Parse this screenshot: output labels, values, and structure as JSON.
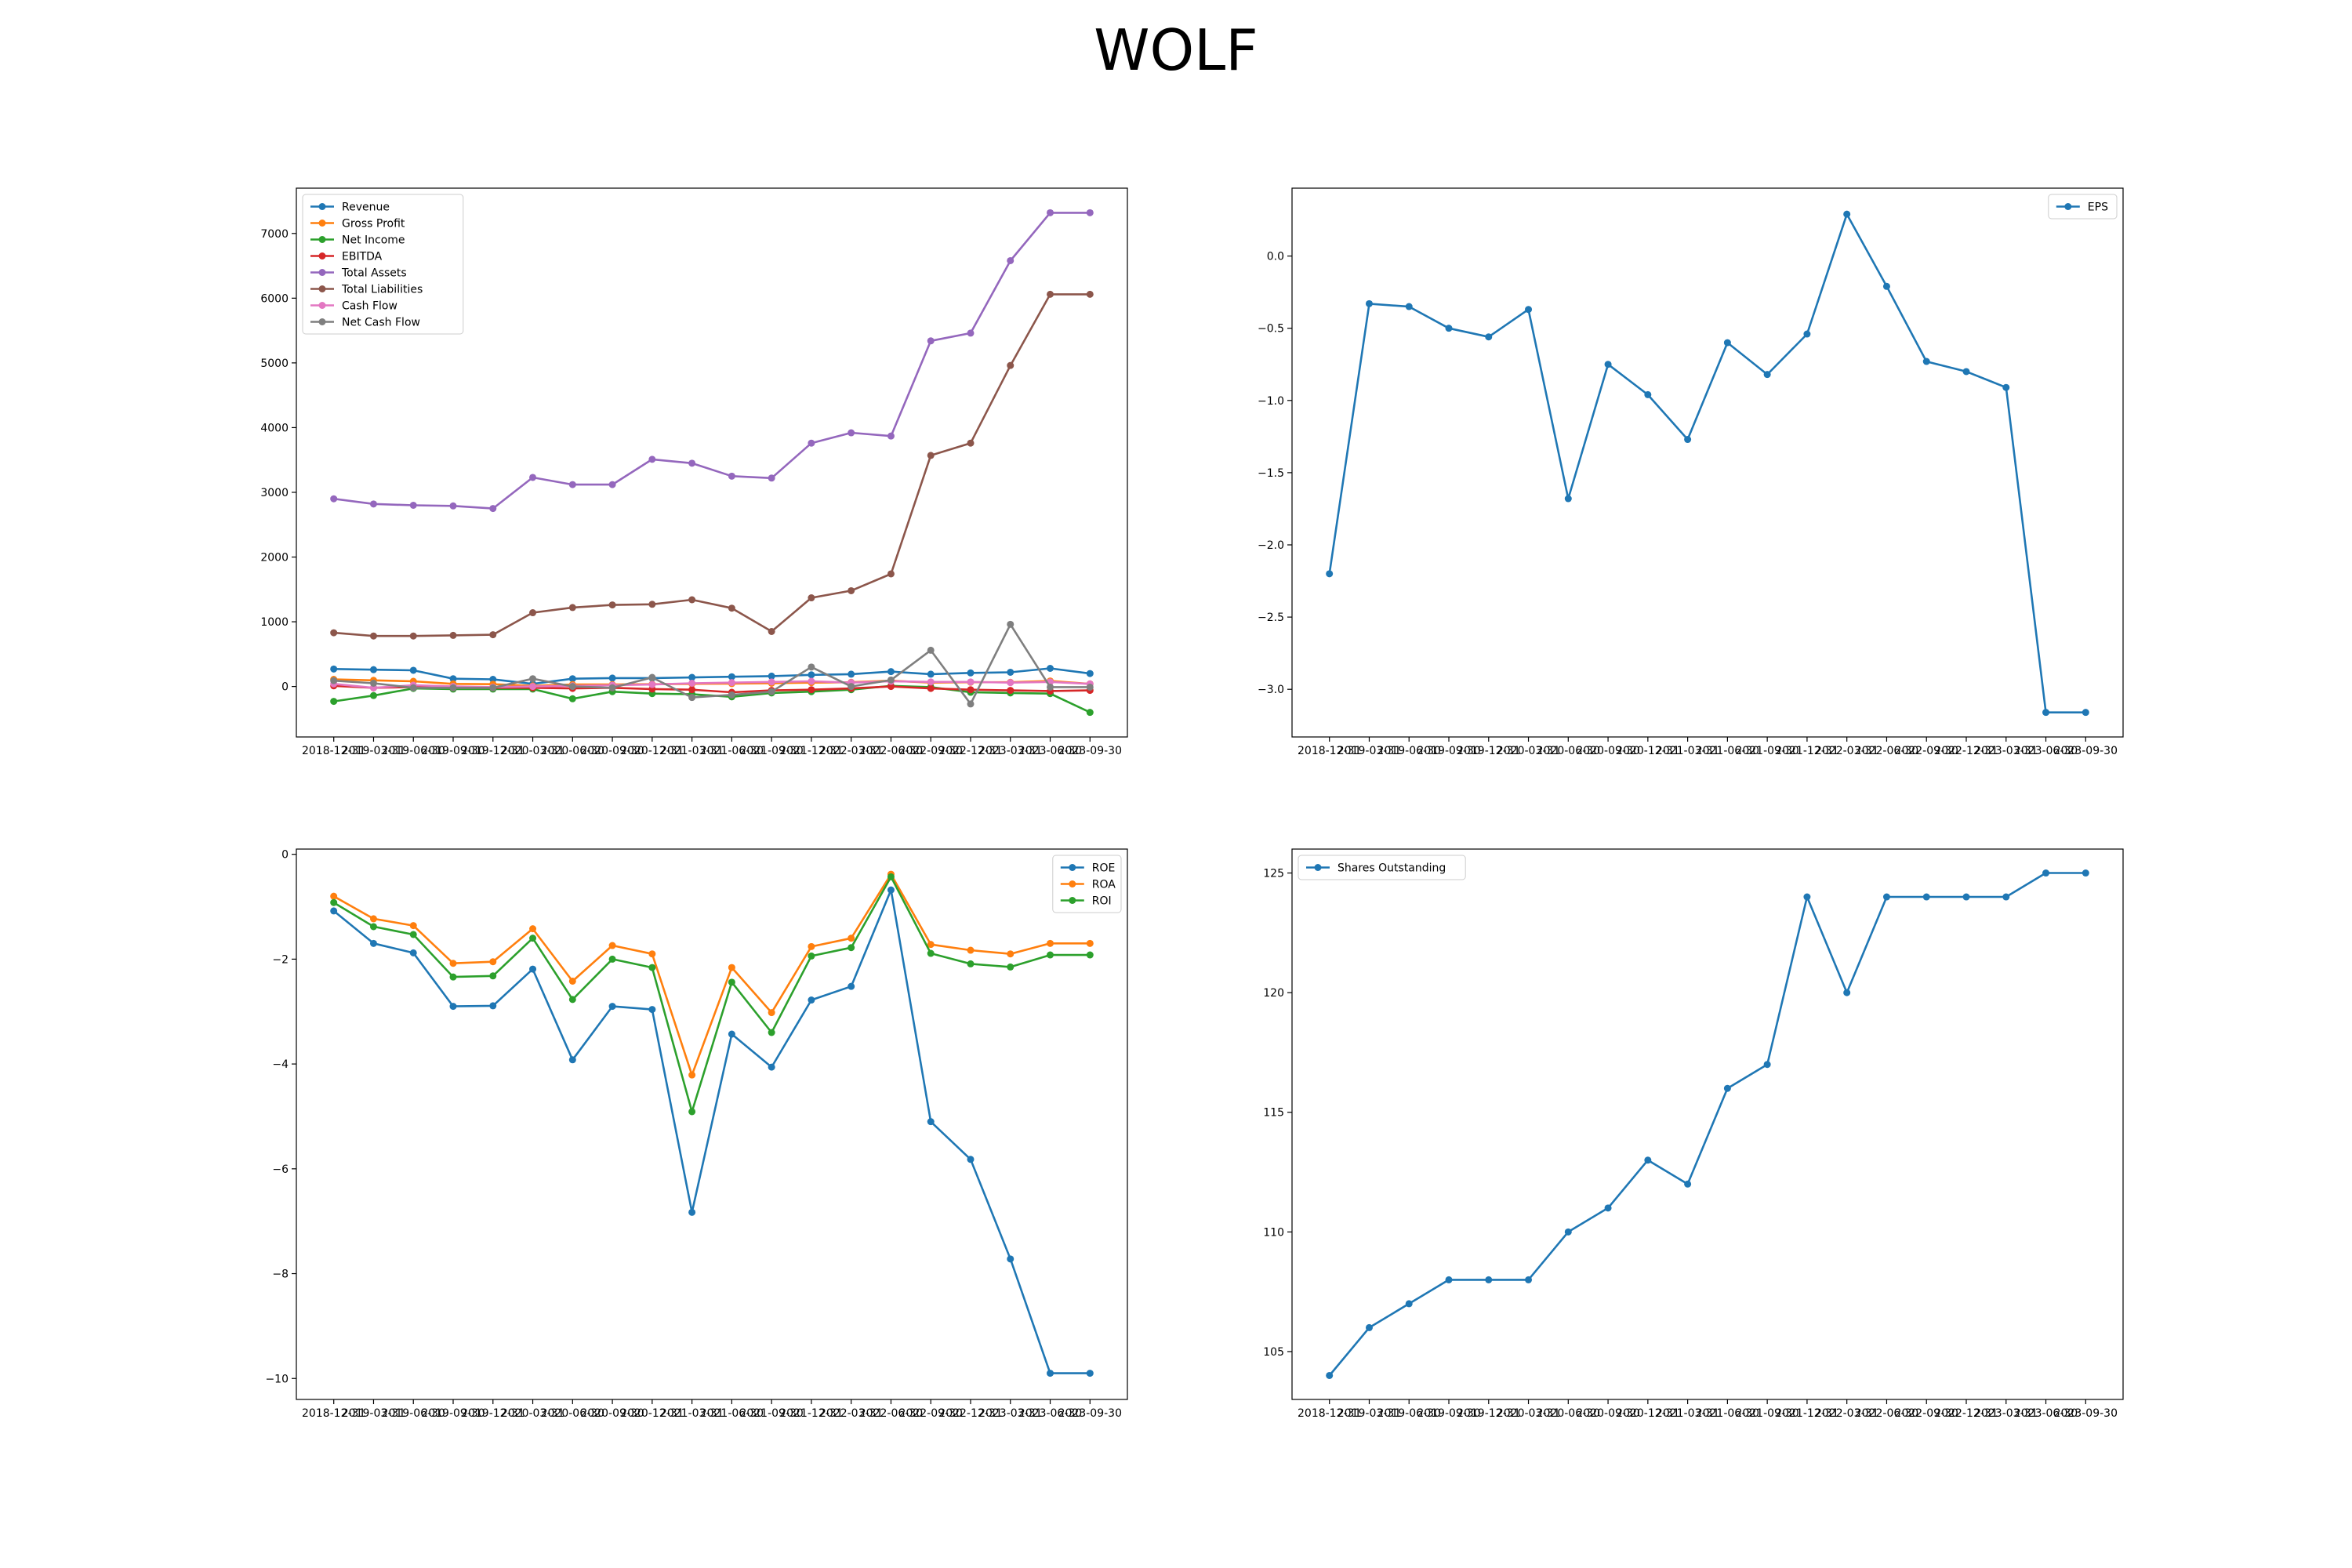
{
  "title": "WOLF",
  "dates": [
    "2018-12-31",
    "2019-03-31",
    "2019-06-30",
    "2019-09-30",
    "2019-12-31",
    "2020-03-31",
    "2020-06-30",
    "2020-09-30",
    "2020-12-31",
    "2021-03-31",
    "2021-06-30",
    "2021-09-30",
    "2021-12-31",
    "2022-03-31",
    "2022-06-30",
    "2022-09-30",
    "2022-12-31",
    "2023-03-31",
    "2023-06-30",
    "2023-09-30"
  ],
  "colors": [
    "#1f77b4",
    "#ff7f0e",
    "#2ca02c",
    "#d62728",
    "#9467bd",
    "#8c564b",
    "#e377c2",
    "#7f7f7f"
  ],
  "chart_data": [
    {
      "type": "line",
      "ylim": [
        -780,
        7700
      ],
      "yticks": [
        0,
        1000,
        2000,
        3000,
        4000,
        5000,
        6000,
        7000
      ],
      "legend_loc": "upper-left",
      "series": [
        {
          "name": "Revenue",
          "values": [
            270,
            260,
            250,
            120,
            110,
            40,
            120,
            130,
            130,
            140,
            150,
            160,
            180,
            190,
            230,
            190,
            210,
            220,
            280,
            200
          ]
        },
        {
          "name": "Gross Profit",
          "values": [
            110,
            95,
            80,
            40,
            35,
            10,
            30,
            30,
            35,
            40,
            45,
            50,
            60,
            65,
            90,
            60,
            65,
            65,
            85,
            40
          ]
        },
        {
          "name": "Net Income",
          "values": [
            -230,
            -140,
            -30,
            -40,
            -40,
            -40,
            -190,
            -80,
            -110,
            -120,
            -160,
            -100,
            -80,
            -50,
            10,
            -10,
            -90,
            -100,
            -110,
            -400
          ]
        },
        {
          "name": "EBITDA",
          "values": [
            10,
            -20,
            -10,
            -20,
            -20,
            -20,
            -30,
            -20,
            -40,
            -50,
            -90,
            -60,
            -50,
            -30,
            0,
            -30,
            -50,
            -60,
            -70,
            -60
          ]
        },
        {
          "name": "Total Assets",
          "values": [
            2900,
            2820,
            2800,
            2790,
            2750,
            3230,
            3120,
            3120,
            3510,
            3450,
            3250,
            3220,
            3760,
            3920,
            3870,
            5340,
            5460,
            6580,
            7320,
            7320
          ]
        },
        {
          "name": "Total Liabilities",
          "values": [
            830,
            780,
            780,
            790,
            800,
            1140,
            1220,
            1260,
            1270,
            1340,
            1210,
            850,
            1370,
            1480,
            1740,
            3570,
            3760,
            4960,
            6060,
            6060
          ]
        },
        {
          "name": "Cash Flow",
          "values": [
            40,
            -20,
            20,
            0,
            -10,
            0,
            10,
            20,
            30,
            50,
            60,
            70,
            80,
            60,
            80,
            70,
            70,
            60,
            70,
            40
          ]
        },
        {
          "name": "Net Cash Flow",
          "values": [
            90,
            50,
            -20,
            -20,
            -20,
            120,
            0,
            -20,
            140,
            -170,
            -130,
            -80,
            300,
            0,
            100,
            560,
            -270,
            960,
            -10,
            -10
          ]
        }
      ]
    },
    {
      "type": "line",
      "ylim": [
        -3.33,
        0.47
      ],
      "yticks": [
        0.0,
        -0.5,
        -1.0,
        -1.5,
        -2.0,
        -2.5,
        -3.0
      ],
      "ytick_labels": [
        "0.0",
        "−0.5",
        "−1.0",
        "−1.5",
        "−2.0",
        "−2.5",
        "−3.0"
      ],
      "legend_loc": "upper-right",
      "series": [
        {
          "name": "EPS",
          "values": [
            -2.2,
            -0.33,
            -0.35,
            -0.5,
            -0.56,
            -0.37,
            -1.68,
            -0.75,
            -0.96,
            -1.27,
            -0.6,
            -0.82,
            -0.54,
            0.29,
            -0.21,
            -0.73,
            -0.8,
            -0.91,
            -3.16,
            -3.16
          ]
        }
      ]
    },
    {
      "type": "line",
      "ylim": [
        -10.4,
        0.1
      ],
      "yticks": [
        0,
        -2,
        -4,
        -6,
        -8,
        -10
      ],
      "ytick_labels": [
        "0",
        "−2",
        "−4",
        "−6",
        "−8",
        "−10"
      ],
      "legend_loc": "upper-right",
      "series": [
        {
          "name": "ROE",
          "values": [
            -1.08,
            -1.7,
            -1.88,
            -2.9,
            -2.89,
            -2.19,
            -3.92,
            -2.9,
            -2.96,
            -6.83,
            -3.43,
            -4.06,
            -2.78,
            -2.52,
            -0.68,
            -5.1,
            -5.82,
            -7.72,
            -9.9,
            -9.9
          ]
        },
        {
          "name": "ROA",
          "values": [
            -0.8,
            -1.23,
            -1.36,
            -2.08,
            -2.05,
            -1.42,
            -2.42,
            -1.74,
            -1.9,
            -4.21,
            -2.16,
            -3.02,
            -1.76,
            -1.6,
            -0.38,
            -1.72,
            -1.83,
            -1.9,
            -1.7,
            -1.7
          ]
        },
        {
          "name": "ROI",
          "values": [
            -0.92,
            -1.38,
            -1.53,
            -2.34,
            -2.32,
            -1.6,
            -2.77,
            -2.0,
            -2.16,
            -4.91,
            -2.44,
            -3.4,
            -1.94,
            -1.78,
            -0.43,
            -1.89,
            -2.09,
            -2.15,
            -1.92,
            -1.92
          ]
        }
      ]
    },
    {
      "type": "line",
      "ylim": [
        103,
        126
      ],
      "yticks": [
        105,
        110,
        115,
        120,
        125
      ],
      "legend_loc": "upper-left",
      "series": [
        {
          "name": "Shares Outstanding",
          "values": [
            104,
            106,
            107,
            108,
            108,
            108,
            110,
            111,
            113,
            112,
            116,
            117,
            124,
            120,
            124,
            124,
            124,
            124,
            125,
            125
          ]
        }
      ]
    }
  ]
}
